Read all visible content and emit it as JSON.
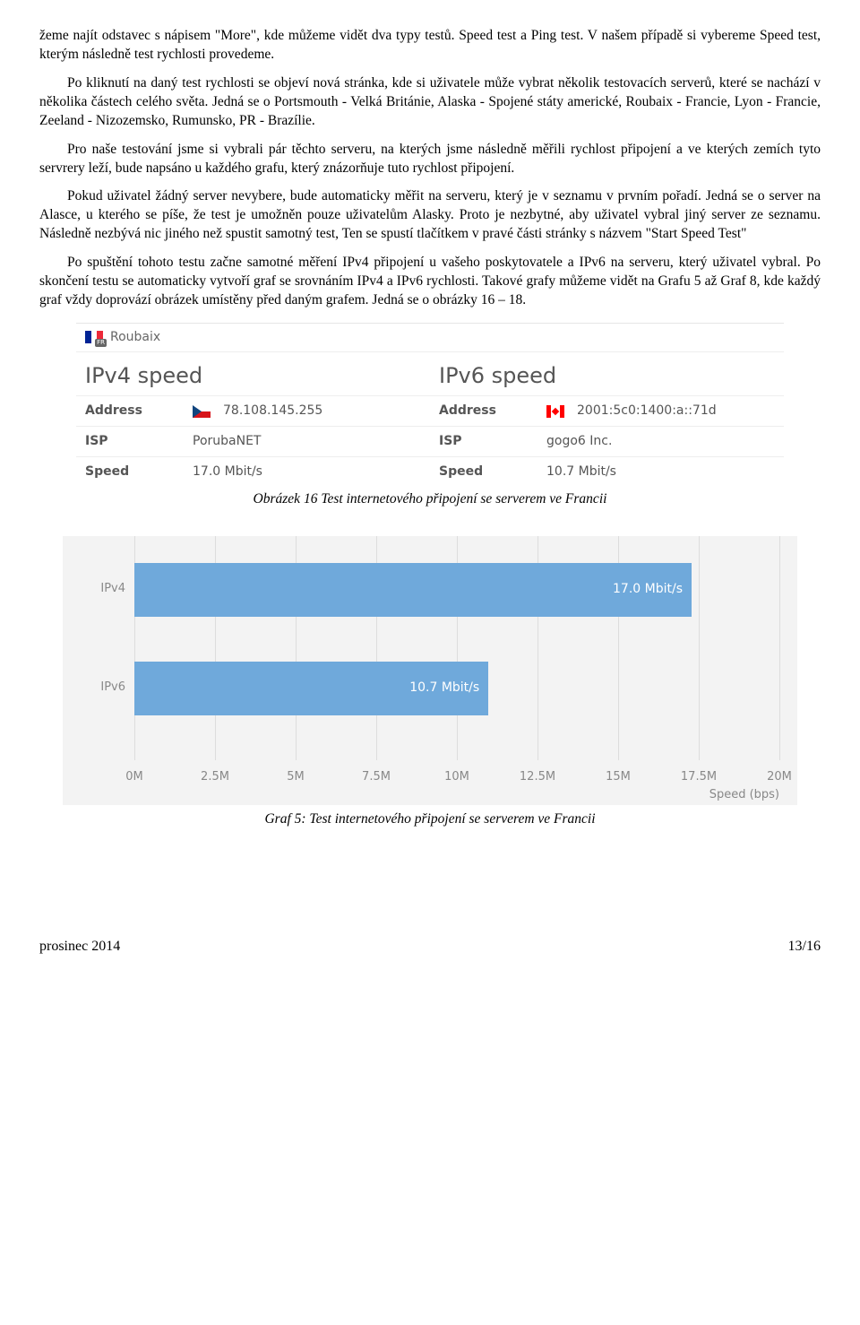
{
  "paragraphs": {
    "p1": "žeme najít odstavec s nápisem \"More\", kde můžeme vidět dva typy testů. Speed test a Ping test. V našem případě si vybereme Speed test, kterým následně test rychlosti provedeme.",
    "p2": "Po kliknutí na daný test rychlosti se objeví nová stránka, kde si uživatele může vybrat několik testovacích serverů, které se nachází v několika částech celého světa. Jedná se o Portsmouth - Velká Británie, Alaska - Spojené státy americké, Roubaix - Francie, Lyon - Francie, Zeeland - Nizozemsko, Rumunsko, PR - Brazílie.",
    "p3": "Pro naše testování jsme si vybrali pár těchto serveru, na kterých jsme následně měřili rychlost připojení a ve kterých zemích tyto servrery leží, bude napsáno u každého grafu, který znázorňuje tuto rychlost připojení.",
    "p4": "Pokud uživatel žádný server nevybere, bude automaticky měřit na serveru, který je v seznamu v prvním pořadí. Jedná se o server na Alasce, u kterého se píše, že test je umožněn pouze uživatelům Alasky. Proto je nezbytné, aby uživatel vybral jiný server ze seznamu. Následně nezbývá nic jiného než spustit samotný test, Ten se spustí tlačítkem v pravé části stránky s názvem \"Start Speed Test\"",
    "p5": "Po spuštění tohoto testu začne samotné měření IPv4 připojení u vašeho poskytovatele a IPv6 na serveru, který uživatel vybral. Po skončení testu se automaticky vytvoří graf se srovnáním IPv4 a IPv6 rychlosti. Takové grafy můžeme vidět na Grafu 5 až Graf 8, kde každý graf vždy doprovází obrázek umístěny před daným grafem. Jedná se o obrázky 16 – 18."
  },
  "speed_table": {
    "server_name": "Roubaix",
    "ipv4_title": "IPv4 speed",
    "ipv6_title": "IPv6 speed",
    "labels": {
      "address": "Address",
      "isp": "ISP",
      "speed": "Speed"
    },
    "ipv4": {
      "address": "78.108.145.255",
      "isp": "PorubaNET",
      "speed": "17.0 Mbit/s"
    },
    "ipv6": {
      "address": "2001:5c0:1400:a::71d",
      "isp": "gogo6 Inc.",
      "speed": "10.7 Mbit/s"
    }
  },
  "figure_caption": "Obrázek 16 Test internetového připojení se serverem ve Francii",
  "chart": {
    "type": "bar-horizontal",
    "background": "#f3f3f3",
    "bar_color": "#6fa9db",
    "grid_color": "#dddddd",
    "text_color": "#888888",
    "xmin": 0,
    "xmax": 20,
    "xtick_step": 2.5,
    "xtick_labels": [
      "0M",
      "2.5M",
      "5M",
      "7.5M",
      "10M",
      "12.5M",
      "15M",
      "17.5M",
      "20M"
    ],
    "axis_title": "Speed (bps)",
    "series": [
      {
        "label": "IPv4",
        "value": 17.0,
        "value_label": "17.0 Mbit/s"
      },
      {
        "label": "IPv6",
        "value": 10.7,
        "value_label": "10.7 Mbit/s"
      }
    ]
  },
  "chart_caption": "Graf 5: Test internetového připojení se serverem ve Francii",
  "footer": {
    "left": "prosinec 2014",
    "right": "13/16"
  }
}
